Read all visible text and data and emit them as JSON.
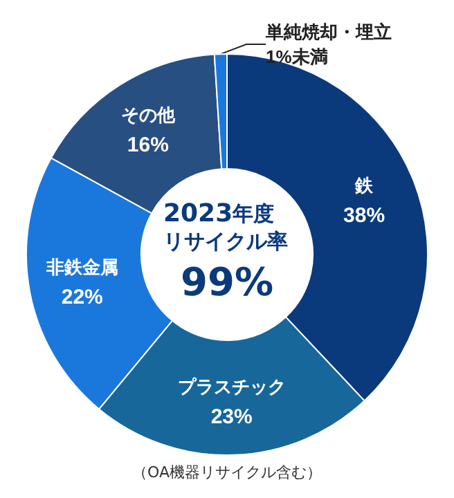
{
  "chart_data": {
    "type": "donut",
    "title": "2023年度リサイクル率",
    "categories": [
      "鉄",
      "プラスチック",
      "非鉄金属",
      "その他",
      "単純焼却・埋立"
    ],
    "values": [
      38,
      23,
      22,
      16,
      1
    ],
    "colors": [
      "#0b3a7c",
      "#17679b",
      "#1a78dd",
      "#284f82",
      "#1a78dd"
    ],
    "value_labels": [
      "38%",
      "23%",
      "22%",
      "16%",
      "1%未満"
    ],
    "annotations": [
      "99%",
      "（OA機器リサイクル含む）"
    ],
    "legend": false
  }
}
